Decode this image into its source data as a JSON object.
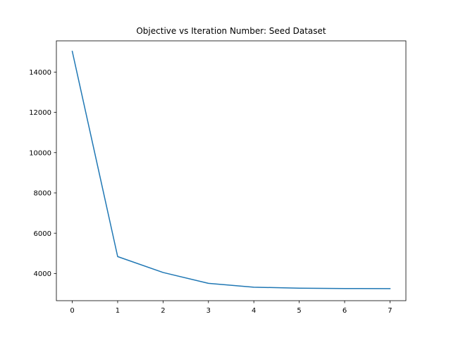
{
  "chart_data": {
    "type": "line",
    "title": "Objective vs Iteration Number: Seed Dataset",
    "xlabel": "",
    "ylabel": "",
    "x": [
      0,
      1,
      2,
      3,
      4,
      5,
      6,
      7
    ],
    "series": [
      {
        "values": [
          15030,
          4840,
          4050,
          3510,
          3320,
          3270,
          3255,
          3250
        ],
        "color": "#1f77b4"
      }
    ],
    "xlim": [
      -0.35,
      7.35
    ],
    "ylim": [
      2650,
      15550
    ],
    "x_ticks": [
      0,
      1,
      2,
      3,
      4,
      5,
      6,
      7
    ],
    "y_ticks": [
      4000,
      6000,
      8000,
      10000,
      12000,
      14000
    ],
    "grid": false,
    "legend": "none"
  }
}
